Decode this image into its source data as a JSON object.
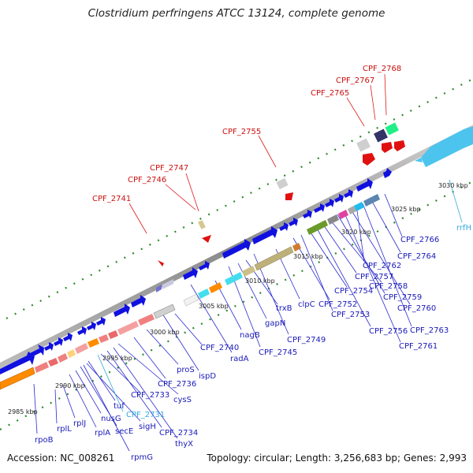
{
  "title": "Clostridium perfringens ATCC 13124, complete genome",
  "footer": {
    "accession": "Accession: NC_008261",
    "topology": "Topology: circular; Length: 3,256,683 bp; Genes: 2,993"
  },
  "colors": {
    "forward_cds": "#1010e0",
    "reverse_cds": "#ff8c00",
    "highlight": "#e01010",
    "backbone": "#999999",
    "rrna": "#4cc4ee"
  },
  "ticks": [
    "2985 kbp",
    "2990 kbp",
    "2995 kbp",
    "3000 kbp",
    "3005 kbp",
    "3010 kbp",
    "3015 kbp",
    "3020 kbp",
    "3025 kbp",
    "3030 kbp"
  ],
  "labels": {
    "red": [
      "CPF_2741",
      "CPF_2746",
      "CPF_2747",
      "CPF_2755",
      "CPF_2765",
      "CPF_2767",
      "CPF_2768"
    ],
    "blue": [
      "rpoB",
      "rplL",
      "rplJ",
      "rplA",
      "nusG",
      "secE",
      "sigH",
      "tuf",
      "rpmG",
      "CPF_2733",
      "CPF_2734",
      "thyX",
      "cysS",
      "CPF_2736",
      "proS",
      "ispD",
      "CPF_2740",
      "radA",
      "nagB",
      "CPF_2745",
      "gapN",
      "trxB",
      "CPF_2749",
      "clpC",
      "CPF_2752",
      "CPF_2753",
      "CPF_2754",
      "CPF_2756",
      "CPF_2757",
      "CPF_2758",
      "CPF_2759",
      "CPF_2760",
      "CPF_2761",
      "CPF_2762",
      "CPF_2763",
      "CPF_2764",
      "CPF_2766"
    ],
    "cyan": [
      "CPF_2731",
      "rrfH"
    ]
  }
}
